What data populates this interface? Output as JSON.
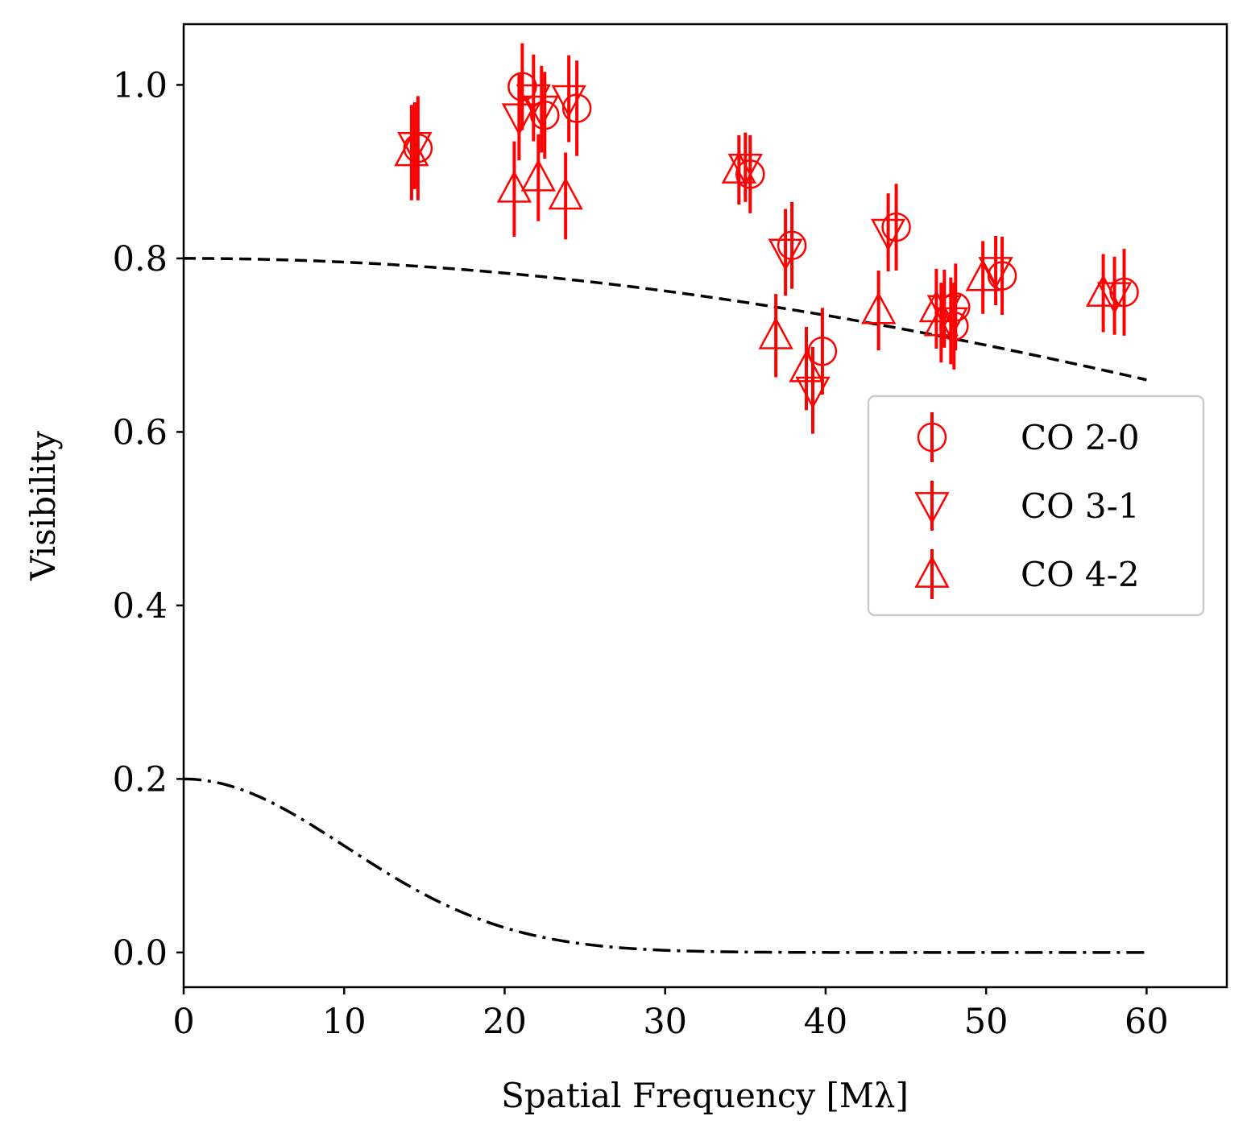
{
  "chart_data": {
    "type": "scatter",
    "title": "",
    "xlabel": "Spatial Frequency [Mλ]",
    "ylabel": "Visibility",
    "xlim": [
      0,
      65
    ],
    "ylim": [
      -0.04,
      1.07
    ],
    "xticks": [
      0,
      10,
      20,
      30,
      40,
      50,
      60
    ],
    "xtick_labels": [
      "0",
      "10",
      "20",
      "30",
      "40",
      "50",
      "60"
    ],
    "yticks": [
      0.0,
      0.2,
      0.4,
      0.6,
      0.8,
      1.0
    ],
    "ytick_labels": [
      "0.0",
      "0.2",
      "0.4",
      "0.6",
      "0.8",
      "1.0"
    ],
    "grid": false,
    "legend_position": "center-right",
    "colors": {
      "data": "#ff0000",
      "model": "#000000"
    },
    "series": [
      {
        "name": "CO 2-0",
        "marker": "circle",
        "points": [
          {
            "x": 14.6,
            "y": 0.927,
            "err": 0.06
          },
          {
            "x": 21.1,
            "y": 0.998,
            "err": 0.05
          },
          {
            "x": 22.5,
            "y": 0.965,
            "err": 0.05
          },
          {
            "x": 24.5,
            "y": 0.973,
            "err": 0.055
          },
          {
            "x": 35.3,
            "y": 0.897,
            "err": 0.045
          },
          {
            "x": 37.9,
            "y": 0.815,
            "err": 0.05
          },
          {
            "x": 39.8,
            "y": 0.693,
            "err": 0.05
          },
          {
            "x": 44.4,
            "y": 0.836,
            "err": 0.05
          },
          {
            "x": 48.0,
            "y": 0.722,
            "err": 0.05
          },
          {
            "x": 48.1,
            "y": 0.744,
            "err": 0.05
          },
          {
            "x": 51.0,
            "y": 0.78,
            "err": 0.045
          },
          {
            "x": 58.6,
            "y": 0.761,
            "err": 0.05
          }
        ]
      },
      {
        "name": "CO 3-1",
        "marker": "triangle-down",
        "points": [
          {
            "x": 14.4,
            "y": 0.93,
            "err": 0.05
          },
          {
            "x": 20.9,
            "y": 0.963,
            "err": 0.05
          },
          {
            "x": 21.8,
            "y": 0.985,
            "err": 0.05
          },
          {
            "x": 22.3,
            "y": 0.972,
            "err": 0.05
          },
          {
            "x": 24.0,
            "y": 0.984,
            "err": 0.05
          },
          {
            "x": 35.0,
            "y": 0.905,
            "err": 0.04
          },
          {
            "x": 37.5,
            "y": 0.807,
            "err": 0.05
          },
          {
            "x": 39.2,
            "y": 0.648,
            "err": 0.05
          },
          {
            "x": 43.9,
            "y": 0.83,
            "err": 0.045
          },
          {
            "x": 47.4,
            "y": 0.742,
            "err": 0.045
          },
          {
            "x": 47.8,
            "y": 0.728,
            "err": 0.05
          },
          {
            "x": 50.6,
            "y": 0.786,
            "err": 0.04
          },
          {
            "x": 58.0,
            "y": 0.757,
            "err": 0.045
          }
        ]
      },
      {
        "name": "CO 4-2",
        "marker": "triangle-up",
        "points": [
          {
            "x": 14.2,
            "y": 0.922,
            "err": 0.055
          },
          {
            "x": 20.6,
            "y": 0.88,
            "err": 0.055
          },
          {
            "x": 22.1,
            "y": 0.893,
            "err": 0.05
          },
          {
            "x": 23.8,
            "y": 0.872,
            "err": 0.05
          },
          {
            "x": 34.6,
            "y": 0.902,
            "err": 0.04
          },
          {
            "x": 36.9,
            "y": 0.711,
            "err": 0.048
          },
          {
            "x": 38.8,
            "y": 0.673,
            "err": 0.048
          },
          {
            "x": 43.3,
            "y": 0.74,
            "err": 0.046
          },
          {
            "x": 46.9,
            "y": 0.742,
            "err": 0.046
          },
          {
            "x": 47.2,
            "y": 0.726,
            "err": 0.046
          },
          {
            "x": 49.8,
            "y": 0.778,
            "err": 0.042
          },
          {
            "x": 57.3,
            "y": 0.76,
            "err": 0.045
          }
        ]
      }
    ],
    "model_curves": [
      {
        "name": "model-dashed",
        "style": "dashed",
        "x_range": [
          0,
          60
        ],
        "amplitude": 0.8,
        "value_at_end": 0.66
      },
      {
        "name": "model-dashdot",
        "style": "dashdot",
        "x_range": [
          0,
          60
        ],
        "amplitude": 0.2,
        "value_at_x": [
          10,
          0.123
        ]
      }
    ]
  }
}
